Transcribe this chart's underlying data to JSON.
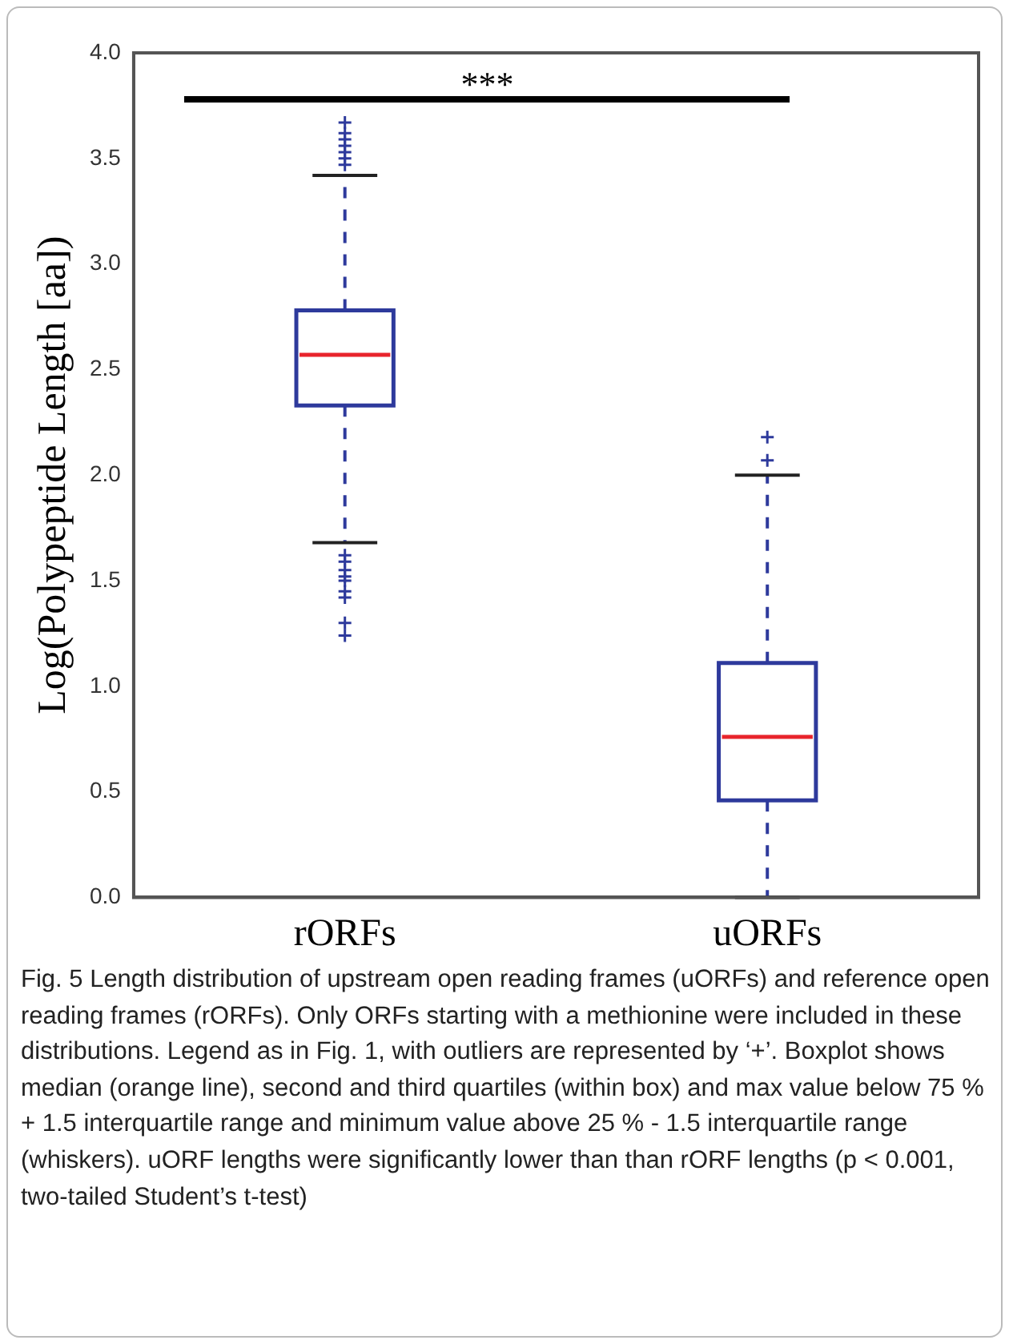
{
  "chart_data": {
    "type": "box",
    "ylabel": "Log(Polypeptide Length [aa])",
    "categories": [
      "rORFs",
      "uORFs"
    ],
    "ylim": [
      0,
      4
    ],
    "yticks": [
      {
        "value": 0,
        "label": "0.0"
      },
      {
        "value": 0.5,
        "label": "0.5"
      },
      {
        "value": 1,
        "label": "1.0"
      },
      {
        "value": 1.5,
        "label": "1.5"
      },
      {
        "value": 2,
        "label": "2.0"
      },
      {
        "value": 2.5,
        "label": "2.5"
      },
      {
        "value": 3,
        "label": "3.0"
      },
      {
        "value": 3.5,
        "label": "3.5"
      },
      {
        "value": 4,
        "label": "4.0"
      }
    ],
    "grid": false,
    "legend": false,
    "marker": "cross",
    "line_style": "dashed",
    "series": [
      {
        "color": "#2e3a9c",
        "boxes": [
          {
            "low": 1.68,
            "q1": 2.33,
            "median": 2.57,
            "q3": 2.78,
            "high": 3.42,
            "outliers": [
              3.47,
              3.5,
              3.53,
              3.56,
              3.59,
              3.62,
              3.67,
              1.62,
              1.59,
              1.55,
              1.52,
              1.5,
              1.45,
              1.42,
              1.3,
              1.24
            ]
          },
          {
            "low": 0,
            "q1": 0.46,
            "median": 0.76,
            "q3": 1.11,
            "high": 2.0,
            "outliers": [
              2.07,
              2.18
            ]
          }
        ]
      }
    ],
    "annotations": [
      "***",
      "Fig. 5 Length distribution of upstream open reading frames (uORFs) and reference open reading frames (rORFs). Only ORFs starting with a methionine were included in these distributions. Legend as in Fig. 1, with outliers are represented by ‘+’. Boxplot shows median (orange line), second and third quartiles (within box) and max value below 75 % + 1.5 interquartile range and minimum value above 25 % - 1.5 interquartile range (whiskers). uORF lengths were significantly lower than than rORF lengths (p < 0.001, two-tailed Student’s t-test)"
    ]
  }
}
